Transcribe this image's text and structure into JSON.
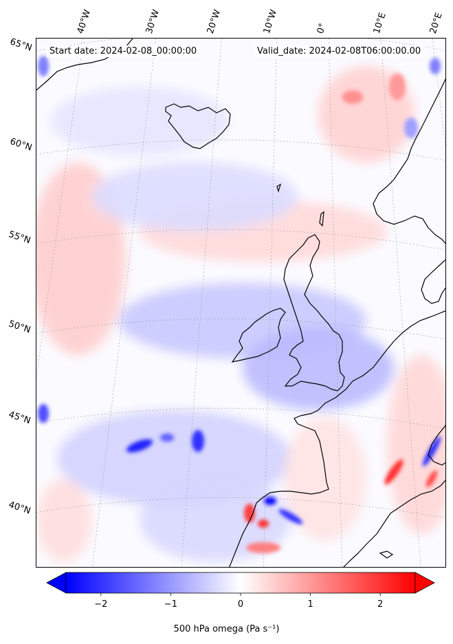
{
  "header": {
    "start_date": "Start date: 2024-02-08_00:00:00",
    "valid_date": "Valid_date: 2024-02-08T06:00:00.00"
  },
  "longitude_labels": [
    "40°W",
    "30°W",
    "20°W",
    "10°W",
    "0°",
    "10°E",
    "20°E"
  ],
  "latitude_labels": [
    "65°N",
    "60°N",
    "55°N",
    "50°N",
    "45°N",
    "40°N"
  ],
  "colorbar": {
    "label": "500 hPa omega (Pa s⁻¹)",
    "min": -2.5,
    "max": 2.5,
    "extend": "both",
    "colormap": "bwr",
    "ticks": [
      "−2",
      "−1",
      "0",
      "1",
      "2"
    ],
    "tick_values": [
      -2,
      -1,
      0,
      1,
      2
    ]
  },
  "colors": {
    "negative": "#0000ff",
    "neutral": "#ffffff",
    "positive": "#ff0000",
    "coastline": "#000000",
    "gridline": "#9a9a9a"
  }
}
